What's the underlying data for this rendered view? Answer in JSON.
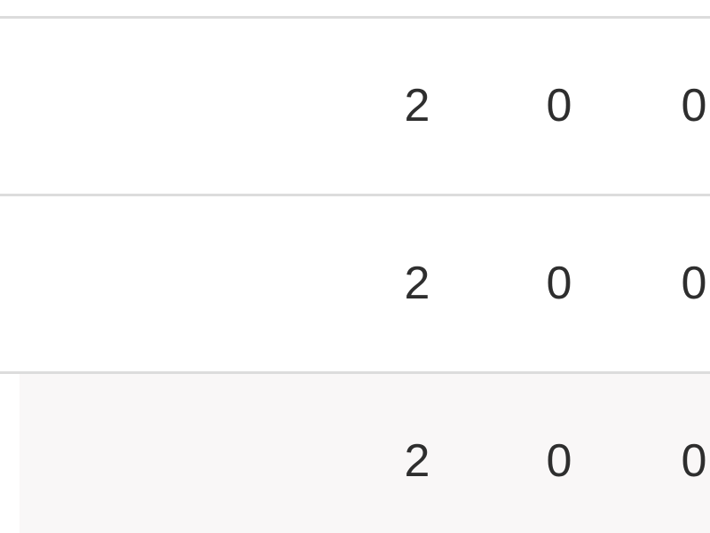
{
  "table": {
    "rows": [
      [
        2,
        0,
        0
      ],
      [
        2,
        0,
        0
      ],
      [
        2,
        0,
        0
      ]
    ]
  }
}
